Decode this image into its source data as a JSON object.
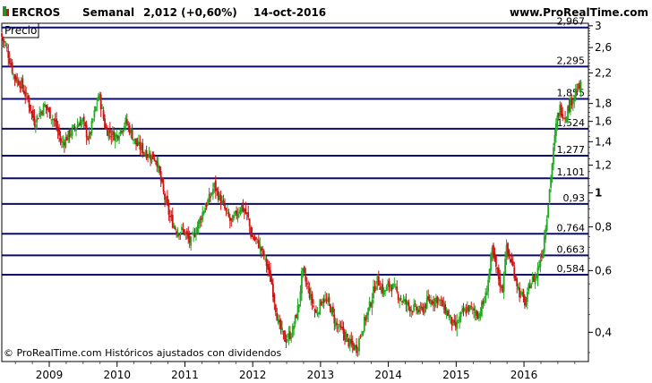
{
  "header": {
    "symbol": "ERCROS",
    "period": "Semanal",
    "quote": "2,012 (+0,60%)",
    "date": "14-oct-2016",
    "site": "www.ProRealTime.com"
  },
  "panel_label": "Precio",
  "copyright": "© ProRealTime.com  Históricos ajustados con dividendos",
  "colors": {
    "up": "#22aa22",
    "down": "#cc1111",
    "level_line": "#0c0c6e",
    "axis": "#000000"
  },
  "chart_data": {
    "type": "candlestick",
    "scale": "log",
    "ylim": [
      0.33,
      3.05
    ],
    "y_ticks": [
      {
        "value": 3,
        "label": "3"
      },
      {
        "value": 2.6,
        "label": "2,6"
      },
      {
        "value": 2.2,
        "label": "2,2"
      },
      {
        "value": 1.8,
        "label": "1,8"
      },
      {
        "value": 1.6,
        "label": "1,6"
      },
      {
        "value": 1.4,
        "label": "1,4"
      },
      {
        "value": 1.2,
        "label": "1,2"
      },
      {
        "value": 1,
        "label": "1"
      },
      {
        "value": 0.8,
        "label": "0,8"
      },
      {
        "value": 0.6,
        "label": "0,6"
      },
      {
        "value": 0.4,
        "label": "0,4"
      }
    ],
    "x_ticks": [
      {
        "value": 2009,
        "label": "2009"
      },
      {
        "value": 2010,
        "label": "2010"
      },
      {
        "value": 2011,
        "label": "2011"
      },
      {
        "value": 2012,
        "label": "2012"
      },
      {
        "value": 2013,
        "label": "2013"
      },
      {
        "value": 2014,
        "label": "2014"
      },
      {
        "value": 2015,
        "label": "2015"
      },
      {
        "value": 2016,
        "label": "2016"
      }
    ],
    "xlim": [
      2008.3,
      2016.95
    ],
    "levels": [
      {
        "value": 2.967,
        "label": "2,967"
      },
      {
        "value": 2.295,
        "label": "2,295"
      },
      {
        "value": 1.855,
        "label": "1,855"
      },
      {
        "value": 1.524,
        "label": "1,524"
      },
      {
        "value": 1.277,
        "label": "1,277"
      },
      {
        "value": 1.101,
        "label": "1,101"
      },
      {
        "value": 0.93,
        "label": "0,93"
      },
      {
        "value": 0.764,
        "label": "0,764"
      },
      {
        "value": 0.663,
        "label": "0,663"
      },
      {
        "value": 0.584,
        "label": "0,584"
      }
    ],
    "price_path": [
      [
        2008.3,
        2.85
      ],
      [
        2008.4,
        2.55
      ],
      [
        2008.5,
        2.15
      ],
      [
        2008.6,
        2.05
      ],
      [
        2008.7,
        1.85
      ],
      [
        2008.8,
        1.6
      ],
      [
        2008.95,
        1.78
      ],
      [
        2009.1,
        1.6
      ],
      [
        2009.2,
        1.38
      ],
      [
        2009.35,
        1.5
      ],
      [
        2009.5,
        1.62
      ],
      [
        2009.6,
        1.42
      ],
      [
        2009.75,
        1.92
      ],
      [
        2009.85,
        1.52
      ],
      [
        2010.0,
        1.45
      ],
      [
        2010.15,
        1.6
      ],
      [
        2010.3,
        1.38
      ],
      [
        2010.45,
        1.3
      ],
      [
        2010.6,
        1.25
      ],
      [
        2010.7,
        1.0
      ],
      [
        2010.8,
        0.85
      ],
      [
        2010.9,
        0.78
      ],
      [
        2011.0,
        0.78
      ],
      [
        2011.1,
        0.72
      ],
      [
        2011.2,
        0.8
      ],
      [
        2011.3,
        0.9
      ],
      [
        2011.4,
        0.98
      ],
      [
        2011.45,
        1.05
      ],
      [
        2011.55,
        0.95
      ],
      [
        2011.7,
        0.82
      ],
      [
        2011.85,
        0.92
      ],
      [
        2011.95,
        0.85
      ],
      [
        2012.0,
        0.75
      ],
      [
        2012.1,
        0.72
      ],
      [
        2012.2,
        0.65
      ],
      [
        2012.3,
        0.55
      ],
      [
        2012.4,
        0.42
      ],
      [
        2012.5,
        0.38
      ],
      [
        2012.6,
        0.4
      ],
      [
        2012.7,
        0.48
      ],
      [
        2012.75,
        0.6
      ],
      [
        2012.85,
        0.52
      ],
      [
        2012.95,
        0.45
      ],
      [
        2013.05,
        0.5
      ],
      [
        2013.15,
        0.48
      ],
      [
        2013.25,
        0.42
      ],
      [
        2013.35,
        0.4
      ],
      [
        2013.45,
        0.37
      ],
      [
        2013.55,
        0.36
      ],
      [
        2013.65,
        0.42
      ],
      [
        2013.75,
        0.48
      ],
      [
        2013.85,
        0.57
      ],
      [
        2013.95,
        0.52
      ],
      [
        2014.05,
        0.55
      ],
      [
        2014.2,
        0.5
      ],
      [
        2014.35,
        0.47
      ],
      [
        2014.5,
        0.46
      ],
      [
        2014.6,
        0.49
      ],
      [
        2014.75,
        0.5
      ],
      [
        2014.9,
        0.45
      ],
      [
        2015.0,
        0.41
      ],
      [
        2015.1,
        0.45
      ],
      [
        2015.2,
        0.47
      ],
      [
        2015.35,
        0.45
      ],
      [
        2015.45,
        0.5
      ],
      [
        2015.55,
        0.68
      ],
      [
        2015.6,
        0.62
      ],
      [
        2015.7,
        0.52
      ],
      [
        2015.75,
        0.7
      ],
      [
        2015.85,
        0.62
      ],
      [
        2015.95,
        0.52
      ],
      [
        2016.05,
        0.48
      ],
      [
        2016.1,
        0.55
      ],
      [
        2016.2,
        0.58
      ],
      [
        2016.3,
        0.7
      ],
      [
        2016.38,
        0.95
      ],
      [
        2016.45,
        1.3
      ],
      [
        2016.5,
        1.6
      ],
      [
        2016.55,
        1.75
      ],
      [
        2016.62,
        1.65
      ],
      [
        2016.7,
        1.8
      ],
      [
        2016.78,
        1.95
      ],
      [
        2016.85,
        2.01
      ]
    ]
  }
}
